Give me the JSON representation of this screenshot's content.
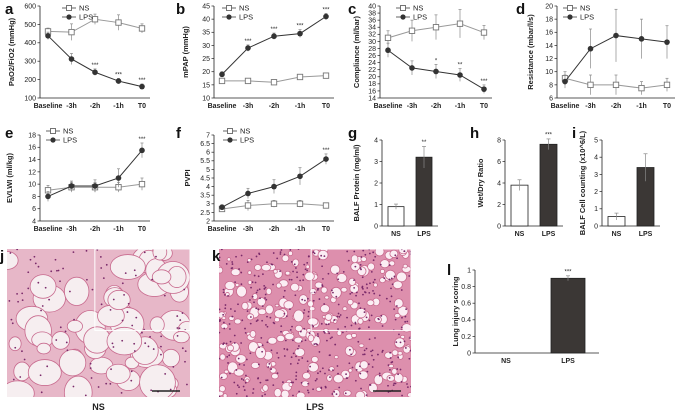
{
  "figure": {
    "micrographs": [
      {
        "label": "j",
        "caption": "NS"
      },
      {
        "label": "k",
        "caption": "LPS"
      }
    ]
  },
  "chart_data": [
    {
      "panel": "a",
      "type": "line",
      "ylabel": "PaO2/FiO2 (mmHg)",
      "ylim": [
        100,
        600
      ],
      "yticks": [
        100,
        200,
        300,
        400,
        500,
        600
      ],
      "categories": [
        "Baseline",
        "-3h",
        "-2h",
        "-1h",
        "T0"
      ],
      "series": [
        {
          "name": "NS",
          "marker": "open-square",
          "values": [
            462,
            458,
            528,
            510,
            478
          ],
          "errors": [
            18,
            45,
            28,
            42,
            25
          ]
        },
        {
          "name": "LPS",
          "marker": "filled-circle",
          "values": [
            438,
            312,
            240,
            192,
            162
          ],
          "errors": [
            20,
            30,
            18,
            14,
            14
          ],
          "significance": [
            "",
            "",
            "***",
            "***",
            "***"
          ]
        }
      ]
    },
    {
      "panel": "b",
      "type": "line",
      "ylabel": "mPAP (mmHg)",
      "ylim": [
        10,
        45
      ],
      "yticks": [
        10,
        15,
        20,
        25,
        30,
        35,
        40,
        45
      ],
      "categories": [
        "Baseline",
        "-3h",
        "-2h",
        "-1h",
        "T0"
      ],
      "series": [
        {
          "name": "NS",
          "marker": "open-square",
          "values": [
            16.5,
            16.5,
            16,
            18,
            18.5
          ],
          "errors": [
            0.8,
            0.8,
            0.6,
            0.8,
            0.8
          ]
        },
        {
          "name": "LPS",
          "marker": "filled-circle",
          "values": [
            19,
            29,
            33.5,
            34.5,
            41
          ],
          "errors": [
            1,
            1.2,
            1.2,
            1.5,
            1.2
          ],
          "significance": [
            "",
            "***",
            "***",
            "***",
            "***"
          ]
        }
      ]
    },
    {
      "panel": "c",
      "type": "line",
      "ylabel": "Compliance (ml/bar)",
      "ylim": [
        14,
        40
      ],
      "yticks": [
        14,
        16,
        18,
        20,
        22,
        24,
        26,
        28,
        30,
        32,
        34,
        36,
        38,
        40
      ],
      "categories": [
        "Baseline",
        "-3h",
        "-2h",
        "-1h",
        "T0"
      ],
      "series": [
        {
          "name": "NS",
          "marker": "open-square",
          "values": [
            31,
            33,
            34,
            35,
            32.5
          ],
          "errors": [
            2,
            3,
            3.5,
            4,
            2
          ]
        },
        {
          "name": "LPS",
          "marker": "filled-circle",
          "values": [
            27.5,
            22.5,
            21.5,
            20.5,
            16.5
          ],
          "errors": [
            2,
            2,
            2,
            1.8,
            1.2
          ],
          "significance": [
            "",
            "",
            "*",
            "**",
            "***"
          ]
        }
      ]
    },
    {
      "panel": "d",
      "type": "line",
      "ylabel": "Resistance  (mbar/l/s)",
      "ylim": [
        6,
        20
      ],
      "yticks": [
        6,
        8,
        10,
        12,
        14,
        16,
        18,
        20
      ],
      "categories": [
        "Baseline",
        "-3h",
        "-2h",
        "-1h",
        "T0"
      ],
      "series": [
        {
          "name": "NS",
          "marker": "open-square",
          "values": [
            9,
            8,
            8,
            7.5,
            8
          ],
          "errors": [
            1,
            1.5,
            1.5,
            1,
            1
          ]
        },
        {
          "name": "LPS",
          "marker": "filled-circle",
          "values": [
            8.5,
            13.5,
            15.5,
            15,
            14.5
          ],
          "errors": [
            1,
            3,
            4,
            3,
            2.5
          ]
        }
      ]
    },
    {
      "panel": "e",
      "type": "line",
      "ylabel": "EVLWI (ml/kg)",
      "ylim": [
        4,
        18
      ],
      "yticks": [
        4,
        6,
        8,
        10,
        12,
        14,
        16,
        18
      ],
      "categories": [
        "Baseline",
        "-3h",
        "-2h",
        "-1h",
        "T0"
      ],
      "series": [
        {
          "name": "NS",
          "marker": "open-square",
          "values": [
            9,
            9.5,
            9.5,
            9.5,
            10
          ],
          "errors": [
            0.8,
            0.8,
            0.8,
            0.8,
            1
          ]
        },
        {
          "name": "LPS",
          "marker": "filled-circle",
          "values": [
            8,
            9.7,
            9.7,
            11,
            15.5
          ],
          "errors": [
            0.8,
            0.8,
            1,
            1.5,
            1.2
          ],
          "significance": [
            "",
            "",
            "",
            "",
            "***"
          ]
        }
      ]
    },
    {
      "panel": "f",
      "type": "line",
      "ylabel": "PVPI",
      "ylim": [
        2,
        7
      ],
      "yticks": [
        2.0,
        2.5,
        3.0,
        3.5,
        4.0,
        4.5,
        5.0,
        5.5,
        6.0,
        6.5,
        7.0
      ],
      "categories": [
        "Baseline",
        "-3h",
        "-2h",
        "-1h",
        "T0"
      ],
      "series": [
        {
          "name": "NS",
          "marker": "open-square",
          "values": [
            2.7,
            2.9,
            3.0,
            3.0,
            2.9
          ],
          "errors": [
            0.15,
            0.3,
            0.2,
            0.2,
            0.15
          ]
        },
        {
          "name": "LPS",
          "marker": "filled-circle",
          "values": [
            2.8,
            3.6,
            4.0,
            4.6,
            5.6
          ],
          "errors": [
            0.15,
            0.3,
            0.4,
            0.5,
            0.3
          ],
          "significance": [
            "",
            "",
            "",
            "",
            "***"
          ]
        }
      ]
    },
    {
      "panel": "g",
      "type": "bar",
      "ylabel": "BALF Protein (mg/ml)",
      "ylim": [
        0,
        4
      ],
      "yticks": [
        0,
        1,
        2,
        3,
        4
      ],
      "categories": [
        "NS",
        "LPS"
      ],
      "values": [
        0.9,
        3.2
      ],
      "errors": [
        0.12,
        0.5
      ],
      "significance": [
        "",
        "**"
      ]
    },
    {
      "panel": "h",
      "type": "bar",
      "ylabel": "Wet/Dry Ratio",
      "ylim": [
        0,
        8
      ],
      "yticks": [
        0,
        2,
        4,
        6,
        8
      ],
      "categories": [
        "NS",
        "LPS"
      ],
      "values": [
        3.8,
        7.6
      ],
      "errors": [
        0.5,
        0.5
      ],
      "significance": [
        "",
        "***"
      ]
    },
    {
      "panel": "i",
      "type": "bar",
      "ylabel": "BALF Cell counting (x10^6/L)",
      "ylim": [
        0,
        5
      ],
      "yticks": [
        0,
        1,
        2,
        3,
        4,
        5
      ],
      "categories": [
        "NS",
        "LPS"
      ],
      "values": [
        0.55,
        3.4
      ],
      "errors": [
        0.2,
        0.8
      ]
    },
    {
      "panel": "l",
      "type": "bar",
      "ylabel": "Lung injury scoring",
      "ylim": [
        0,
        1.0
      ],
      "yticks": [
        0.0,
        0.2,
        0.4,
        0.6,
        0.8,
        1.0
      ],
      "categories": [
        "NS",
        "LPS"
      ],
      "values": [
        0,
        0.9
      ],
      "errors": [
        0,
        0.03
      ],
      "significance": [
        "",
        "***"
      ]
    }
  ]
}
